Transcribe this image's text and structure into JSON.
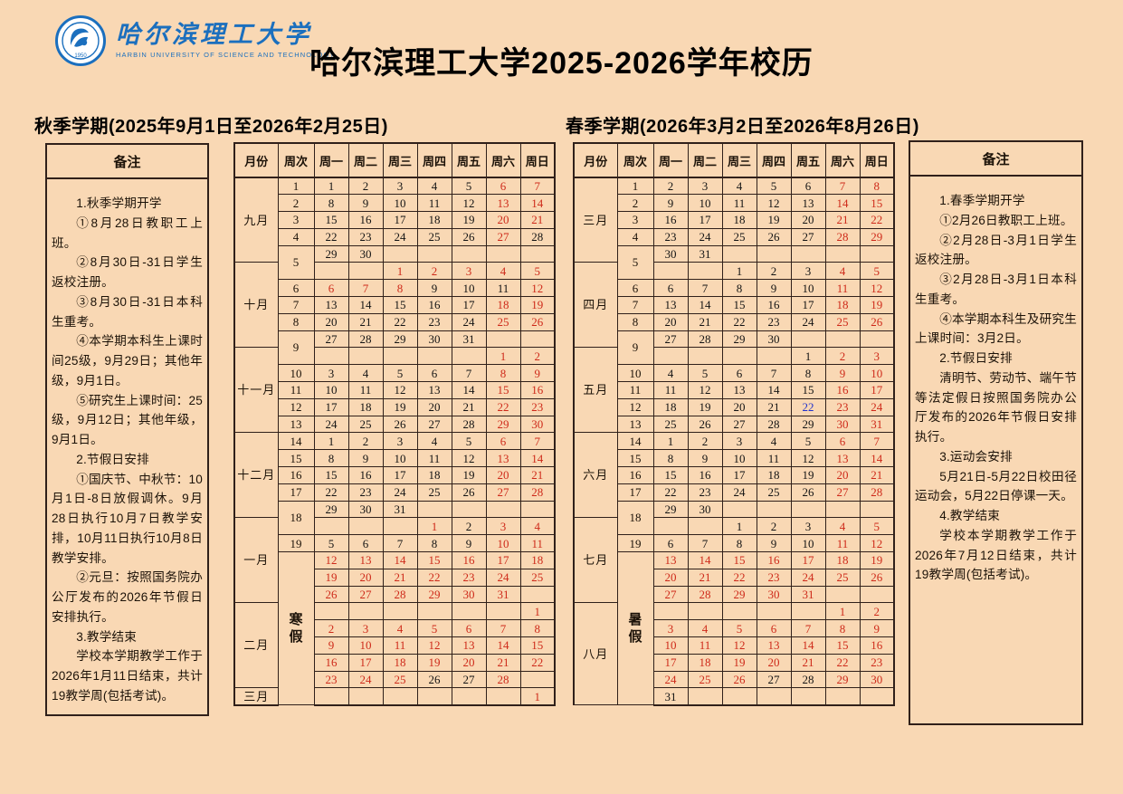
{
  "colors": {
    "background": "#F9D8B4",
    "holiday_red": "#CE2A1A",
    "event_blue": "#2233CC",
    "logo_blue": "#1B6FBE",
    "border": "#30201a"
  },
  "header": {
    "university_cn": "哈尔滨理工大学",
    "university_en": "HARBIN UNIVERSITY OF SCIENCE AND TECHNOLOGY",
    "title": "哈尔滨理工大学2025-2026学年校历"
  },
  "fall": {
    "section_title": "秋季学期(2025年9月1日至2026年2月25日)",
    "notes_label": "备注",
    "notes": [
      "1.秋季学期开学",
      "①8月28日教职工上班。",
      "②8月30日-31日学生返校注册。",
      "③8月30日-31日本科生重考。",
      "④本学期本科生上课时间25级，9月29日；其他年级，9月1日。",
      "⑤研究生上课时间：25级，9月12日；其他年级，9月1日。",
      "2.节假日安排",
      "①国庆节、中秋节：10月1日-8日放假调休。9月28日执行10月7日教学安排，10月11日执行10月8日教学安排。",
      "②元旦：按照国务院办公厅发布的2026年节假日安排执行。",
      "3.教学结束",
      "学校本学期教学工作于2026年1月11日结束，共计19教学周(包括考试)。"
    ]
  },
  "spring": {
    "section_title": "春季学期(2026年3月2日至2026年8月26日)",
    "notes_label": "备注",
    "notes": [
      "1.春季学期开学",
      "①2月26日教职工上班。",
      "②2月28日-3月1日学生返校注册。",
      "③2月28日-3月1日本科生重考。",
      "④本学期本科生及研究生上课时间：3月2日。",
      "2.节假日安排",
      "清明节、劳动节、端午节等法定假日按照国务院办公厅发布的2026年节假日安排执行。",
      "3.运动会安排",
      "5月21日-5月22日校田径运动会，5月22日停课一天。",
      "4.教学结束",
      "学校本学期教学工作于2026年7月12日结束，共计19教学周(包括考试)。"
    ]
  },
  "fall_table": {
    "headers": [
      "月份",
      "周次",
      "周一",
      "周二",
      "周三",
      "周四",
      "周五",
      "周六",
      "周日"
    ],
    "rows": [
      {
        "m": "九月",
        "ms": 5,
        "w": "1",
        "d": [
          "1",
          "2",
          "3",
          "4",
          "5",
          "r6",
          "r7"
        ]
      },
      {
        "w": "2",
        "d": [
          "8",
          "9",
          "10",
          "11",
          "12",
          "r13",
          "r14"
        ]
      },
      {
        "w": "3",
        "d": [
          "15",
          "16",
          "17",
          "18",
          "19",
          "r20",
          "r21"
        ]
      },
      {
        "w": "4",
        "d": [
          "22",
          "23",
          "24",
          "25",
          "26",
          "r27",
          "28"
        ]
      },
      {
        "w": "5",
        "ws": 2,
        "d": [
          "29",
          "30",
          "",
          "",
          "",
          "",
          ""
        ]
      },
      {
        "m": "十月",
        "ms": 5,
        "d": [
          "",
          "",
          "r1",
          "r2",
          "r3",
          "r4",
          "r5"
        ]
      },
      {
        "w": "6",
        "d": [
          "r6",
          "r7",
          "r8",
          "9",
          "10",
          "11",
          "r12"
        ]
      },
      {
        "w": "7",
        "d": [
          "13",
          "14",
          "15",
          "16",
          "17",
          "r18",
          "r19"
        ]
      },
      {
        "w": "8",
        "d": [
          "20",
          "21",
          "22",
          "23",
          "24",
          "r25",
          "r26"
        ]
      },
      {
        "w": "9",
        "ws": 2,
        "d": [
          "27",
          "28",
          "29",
          "30",
          "31",
          "",
          ""
        ]
      },
      {
        "m": "十一月",
        "ms": 5,
        "d": [
          "",
          "",
          "",
          "",
          "",
          "r1",
          "r2"
        ]
      },
      {
        "w": "10",
        "d": [
          "3",
          "4",
          "5",
          "6",
          "7",
          "r8",
          "r9"
        ]
      },
      {
        "w": "11",
        "d": [
          "10",
          "11",
          "12",
          "13",
          "14",
          "r15",
          "r16"
        ]
      },
      {
        "w": "12",
        "d": [
          "17",
          "18",
          "19",
          "20",
          "21",
          "r22",
          "r23"
        ]
      },
      {
        "w": "13",
        "d": [
          "24",
          "25",
          "26",
          "27",
          "28",
          "r29",
          "r30"
        ]
      },
      {
        "m": "十二月",
        "ms": 5,
        "w": "14",
        "d": [
          "1",
          "2",
          "3",
          "4",
          "5",
          "r6",
          "r7"
        ]
      },
      {
        "w": "15",
        "d": [
          "8",
          "9",
          "10",
          "11",
          "12",
          "r13",
          "r14"
        ]
      },
      {
        "w": "16",
        "d": [
          "15",
          "16",
          "17",
          "18",
          "19",
          "r20",
          "r21"
        ]
      },
      {
        "w": "17",
        "d": [
          "22",
          "23",
          "24",
          "25",
          "26",
          "r27",
          "r28"
        ]
      },
      {
        "w": "18",
        "ws": 2,
        "d": [
          "29",
          "30",
          "31",
          "",
          "",
          "",
          ""
        ]
      },
      {
        "m": "一月",
        "ms": 5,
        "d": [
          "",
          "",
          "",
          "r1",
          "2",
          "r3",
          "r4"
        ]
      },
      {
        "w": "19",
        "d": [
          "5",
          "6",
          "7",
          "8",
          "9",
          "r10",
          "r11"
        ]
      },
      {
        "w": "寒假",
        "ws": 9,
        "vert": true,
        "d": [
          "r12",
          "r13",
          "r14",
          "r15",
          "r16",
          "r17",
          "r18"
        ]
      },
      {
        "d": [
          "r19",
          "r20",
          "r21",
          "r22",
          "r23",
          "r24",
          "r25"
        ]
      },
      {
        "d": [
          "r26",
          "r27",
          "r28",
          "r29",
          "r30",
          "r31",
          ""
        ]
      },
      {
        "m": "二月",
        "ms": 5,
        "d": [
          "",
          "",
          "",
          "",
          "",
          "",
          "r1"
        ]
      },
      {
        "d": [
          "r2",
          "r3",
          "r4",
          "r5",
          "r6",
          "r7",
          "r8"
        ]
      },
      {
        "d": [
          "r9",
          "r10",
          "r11",
          "r12",
          "r13",
          "r14",
          "r15"
        ]
      },
      {
        "d": [
          "r16",
          "r17",
          "r18",
          "r19",
          "r20",
          "r21",
          "r22"
        ]
      },
      {
        "d": [
          "r23",
          "r24",
          "r25",
          "26",
          "27",
          "r28",
          ""
        ]
      },
      {
        "m": "三月",
        "ms": 1,
        "d": [
          "",
          "",
          "",
          "",
          "",
          "",
          "r1"
        ]
      }
    ]
  },
  "spring_table": {
    "headers": [
      "月份",
      "周次",
      "周一",
      "周二",
      "周三",
      "周四",
      "周五",
      "周六",
      "周日"
    ],
    "rows": [
      {
        "m": "三月",
        "ms": 5,
        "w": "1",
        "d": [
          "2",
          "3",
          "4",
          "5",
          "6",
          "r7",
          "r8"
        ]
      },
      {
        "w": "2",
        "d": [
          "9",
          "10",
          "11",
          "12",
          "13",
          "r14",
          "r15"
        ]
      },
      {
        "w": "3",
        "d": [
          "16",
          "17",
          "18",
          "19",
          "20",
          "r21",
          "r22"
        ]
      },
      {
        "w": "4",
        "d": [
          "23",
          "24",
          "25",
          "26",
          "27",
          "r28",
          "r29"
        ]
      },
      {
        "w": "5",
        "ws": 2,
        "d": [
          "30",
          "31",
          "",
          "",
          "",
          "",
          ""
        ]
      },
      {
        "m": "四月",
        "ms": 5,
        "d": [
          "",
          "",
          "1",
          "2",
          "3",
          "r4",
          "r5"
        ]
      },
      {
        "w": "6",
        "d": [
          "6",
          "7",
          "8",
          "9",
          "10",
          "r11",
          "r12"
        ]
      },
      {
        "w": "7",
        "d": [
          "13",
          "14",
          "15",
          "16",
          "17",
          "r18",
          "r19"
        ]
      },
      {
        "w": "8",
        "d": [
          "20",
          "21",
          "22",
          "23",
          "24",
          "r25",
          "r26"
        ]
      },
      {
        "w": "9",
        "ws": 2,
        "d": [
          "27",
          "28",
          "29",
          "30",
          "",
          "",
          ""
        ]
      },
      {
        "m": "五月",
        "ms": 5,
        "d": [
          "",
          "",
          "",
          "",
          "1",
          "r2",
          "r3"
        ]
      },
      {
        "w": "10",
        "d": [
          "4",
          "5",
          "6",
          "7",
          "8",
          "r9",
          "r10"
        ]
      },
      {
        "w": "11",
        "d": [
          "11",
          "12",
          "13",
          "14",
          "15",
          "r16",
          "r17"
        ]
      },
      {
        "w": "12",
        "d": [
          "18",
          "19",
          "20",
          "21",
          "u22",
          "r23",
          "r24"
        ]
      },
      {
        "w": "13",
        "d": [
          "25",
          "26",
          "27",
          "28",
          "29",
          "r30",
          "r31"
        ]
      },
      {
        "m": "六月",
        "ms": 5,
        "w": "14",
        "d": [
          "1",
          "2",
          "3",
          "4",
          "5",
          "r6",
          "r7"
        ]
      },
      {
        "w": "15",
        "d": [
          "8",
          "9",
          "10",
          "11",
          "12",
          "r13",
          "r14"
        ]
      },
      {
        "w": "16",
        "d": [
          "15",
          "16",
          "17",
          "18",
          "19",
          "r20",
          "r21"
        ]
      },
      {
        "w": "17",
        "d": [
          "22",
          "23",
          "24",
          "25",
          "26",
          "r27",
          "r28"
        ]
      },
      {
        "w": "18",
        "ws": 2,
        "d": [
          "29",
          "30",
          "",
          "",
          "",
          "",
          ""
        ]
      },
      {
        "m": "七月",
        "ms": 5,
        "d": [
          "",
          "",
          "1",
          "2",
          "3",
          "r4",
          "r5"
        ]
      },
      {
        "w": "19",
        "d": [
          "6",
          "7",
          "8",
          "9",
          "10",
          "r11",
          "r12"
        ]
      },
      {
        "w": "暑假",
        "ws": 9,
        "vert": true,
        "d": [
          "r13",
          "r14",
          "r15",
          "r16",
          "r17",
          "r18",
          "r19"
        ]
      },
      {
        "d": [
          "r20",
          "r21",
          "r22",
          "r23",
          "r24",
          "r25",
          "r26"
        ]
      },
      {
        "d": [
          "r27",
          "r28",
          "r29",
          "r30",
          "r31",
          "",
          ""
        ]
      },
      {
        "m": "八月",
        "ms": 6,
        "d": [
          "",
          "",
          "",
          "",
          "",
          "r1",
          "r2"
        ]
      },
      {
        "d": [
          "r3",
          "r4",
          "r5",
          "r6",
          "r7",
          "r8",
          "r9"
        ]
      },
      {
        "d": [
          "r10",
          "r11",
          "r12",
          "r13",
          "r14",
          "r15",
          "r16"
        ]
      },
      {
        "d": [
          "r17",
          "r18",
          "r19",
          "r20",
          "r21",
          "r22",
          "r23"
        ]
      },
      {
        "d": [
          "r24",
          "r25",
          "r26",
          "27",
          "28",
          "r29",
          "r30"
        ]
      },
      {
        "d": [
          "31",
          "",
          "",
          "",
          "",
          "",
          ""
        ]
      }
    ]
  }
}
